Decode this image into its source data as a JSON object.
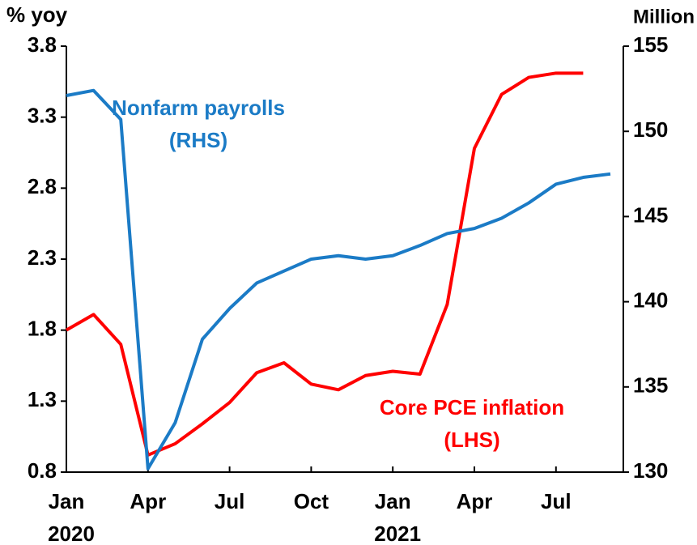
{
  "chart_data": {
    "type": "line",
    "y_axis_label": "% yoy",
    "y2_axis_label": "Million",
    "categories": [
      "Jan",
      null,
      null,
      "Apr",
      null,
      null,
      "Jul",
      null,
      null,
      "Oct",
      null,
      null,
      "Jan",
      null,
      null,
      "Apr",
      null,
      null,
      "Jul",
      null,
      null
    ],
    "category_years": [
      "2020",
      null,
      null,
      null,
      null,
      null,
      null,
      null,
      null,
      null,
      null,
      null,
      "2021",
      null,
      null,
      null,
      null,
      null,
      null,
      null,
      null
    ],
    "series": [
      {
        "name": "Core PCE inflation",
        "color": "#ff0000",
        "axis": "y",
        "values": [
          1.8,
          1.91,
          1.7,
          0.92,
          1.0,
          1.14,
          1.29,
          1.5,
          1.57,
          1.42,
          1.38,
          1.48,
          1.51,
          1.49,
          1.98,
          3.08,
          3.46,
          3.58,
          3.61,
          3.61,
          null
        ]
      },
      {
        "name": "Nonfarm payrolls",
        "color": "#1b7bc6",
        "axis": "y2",
        "values": [
          152.1,
          152.4,
          150.7,
          130.2,
          132.9,
          137.8,
          139.6,
          141.1,
          141.8,
          142.5,
          142.7,
          142.5,
          142.7,
          143.3,
          144.0,
          144.3,
          144.9,
          145.8,
          146.9,
          147.3,
          147.5
        ]
      }
    ],
    "annotations": [
      {
        "lines": [
          "Nonfarm payrolls",
          "(RHS)"
        ],
        "color": "#1b7bc6"
      },
      {
        "lines": [
          "Core PCE inflation",
          "(LHS)"
        ],
        "color": "#ff0000"
      }
    ],
    "ylim": [
      0.8,
      3.8
    ],
    "yticks": [
      0.8,
      1.3,
      1.8,
      2.3,
      2.8,
      3.3,
      3.8
    ],
    "y2lim": [
      130,
      155
    ],
    "y2ticks": [
      130,
      135,
      140,
      145,
      150,
      155
    ],
    "grid": false
  }
}
